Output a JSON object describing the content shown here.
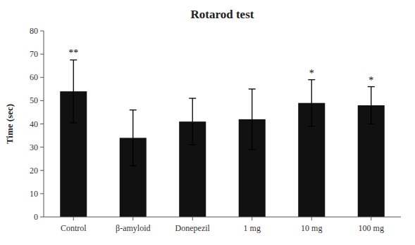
{
  "chart_data": {
    "type": "bar",
    "title": "Rotarod test",
    "ylabel": "Time (sec)",
    "categories": [
      "Control",
      "β-amyloid",
      "Donepezil",
      "1 mg",
      "10 mg",
      "100 mg"
    ],
    "values": [
      54.0,
      34.0,
      41.0,
      42.0,
      49.0,
      48.0
    ],
    "errors": [
      13.5,
      12.0,
      10.0,
      13.0,
      10.0,
      8.0
    ],
    "color": "#111111",
    "ylim": [
      0,
      80
    ],
    "yticks": [
      0,
      10,
      20,
      30,
      40,
      50,
      60,
      70,
      80
    ],
    "annotations": [
      {
        "index": 0,
        "text": "**"
      },
      {
        "index": 4,
        "text": "*"
      },
      {
        "index": 5,
        "text": "*"
      }
    ],
    "grid": false
  }
}
